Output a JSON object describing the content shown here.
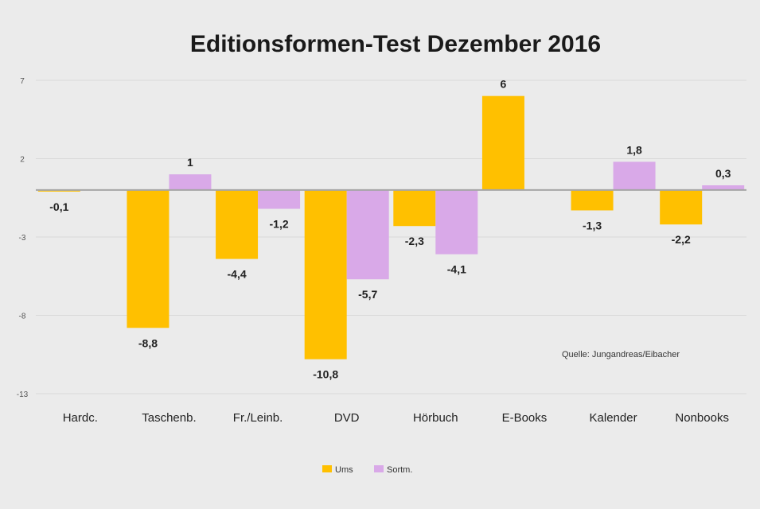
{
  "chart_data": {
    "type": "bar",
    "title": "Editionsformen-Test Dezember 2016",
    "categories": [
      "Hardc.",
      "Taschenb.",
      "Fr./Leinb.",
      "DVD",
      "Hörbuch",
      "E-Books",
      "Kalender",
      "Nonbooks"
    ],
    "series": [
      {
        "name": "Ums",
        "color": "#ffc000",
        "values": [
          -0.1,
          -8.8,
          -4.4,
          -10.8,
          -2.3,
          6,
          -1.3,
          -2.2
        ]
      },
      {
        "name": "Sortm.",
        "color": "#d9a9e8",
        "values": [
          null,
          1,
          -1.2,
          -5.7,
          -4.1,
          null,
          1.8,
          0.3
        ]
      }
    ],
    "data_labels": [
      [
        "-0,1",
        "-8,8",
        "-4,4",
        "-10,8",
        "-2,3",
        "6",
        "-1,3",
        "-2,2"
      ],
      [
        "",
        "1",
        "-1,2",
        "-5,7",
        "-4,1",
        "",
        "1,8",
        "0,3"
      ]
    ],
    "ylim": [
      -13,
      7
    ],
    "yticks": [
      {
        "value": 7,
        "label": "7"
      },
      {
        "value": 2,
        "label": "2"
      },
      {
        "value": -3,
        "label": "-3"
      },
      {
        "value": -8,
        "label": "-8"
      },
      {
        "value": -13,
        "label": "-13"
      }
    ],
    "annotation": "Quelle: Jungandreas/Eibacher",
    "grid": true,
    "legend": "bottom"
  }
}
